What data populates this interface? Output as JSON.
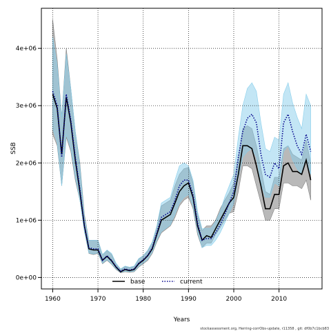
{
  "chart_data": {
    "type": "line",
    "xlabel": "Years",
    "ylabel": "SSB",
    "xlim": [
      1957.5,
      2019.5
    ],
    "ylim": [
      -200000,
      4700000
    ],
    "x_ticks": [
      1960,
      1970,
      1980,
      1990,
      2000,
      2010
    ],
    "x_tick_labels": [
      "1960",
      "1970",
      "1980",
      "1990",
      "2000",
      "2010"
    ],
    "y_ticks": [
      0,
      1000000,
      2000000,
      3000000,
      4000000
    ],
    "y_tick_labels": [
      "0e+00",
      "1e+06",
      "2e+06",
      "3e+06",
      "4e+06"
    ],
    "grid": true,
    "legend_position": "bottom",
    "colors": {
      "base_line": "#000000",
      "base_band": "#808080",
      "current_line": "#00008b",
      "current_band": "#87ceeb",
      "grid": "#000000"
    },
    "series": [
      {
        "name": "base",
        "style": "solid",
        "years": [
          1960,
          1961,
          1962,
          1963,
          1964,
          1965,
          1966,
          1967,
          1968,
          1969,
          1970,
          1971,
          1972,
          1973,
          1974,
          1975,
          1976,
          1977,
          1978,
          1979,
          1980,
          1981,
          1982,
          1983,
          1984,
          1985,
          1986,
          1987,
          1988,
          1989,
          1990,
          1991,
          1992,
          1993,
          1994,
          1995,
          1996,
          1997,
          1998,
          1999,
          2000,
          2001,
          2002,
          2003,
          2004,
          2005,
          2006,
          2007,
          2008,
          2009,
          2010,
          2011,
          2012,
          2013,
          2014,
          2015,
          2016,
          2017
        ],
        "values": [
          3200000,
          2950000,
          2150000,
          3150000,
          2700000,
          2050000,
          1500000,
          900000,
          500000,
          480000,
          480000,
          300000,
          370000,
          290000,
          180000,
          100000,
          140000,
          120000,
          140000,
          240000,
          300000,
          380000,
          500000,
          750000,
          1000000,
          1050000,
          1100000,
          1300000,
          1500000,
          1600000,
          1650000,
          1400000,
          900000,
          650000,
          730000,
          700000,
          850000,
          1000000,
          1150000,
          1300000,
          1400000,
          1800000,
          2300000,
          2300000,
          2250000,
          1950000,
          1600000,
          1200000,
          1200000,
          1450000,
          1450000,
          1950000,
          2000000,
          1850000,
          1850000,
          1800000,
          2050000,
          1700000
        ],
        "lower": [
          2500000,
          2300000,
          1600000,
          2450000,
          2200000,
          1700000,
          1350000,
          800000,
          420000,
          400000,
          420000,
          240000,
          300000,
          230000,
          140000,
          80000,
          100000,
          90000,
          100000,
          180000,
          240000,
          300000,
          420000,
          620000,
          780000,
          840000,
          900000,
          1050000,
          1250000,
          1350000,
          1400000,
          1200000,
          750000,
          520000,
          600000,
          600000,
          750000,
          870000,
          1000000,
          1120000,
          1150000,
          1500000,
          1950000,
          1950000,
          1900000,
          1600000,
          1300000,
          1000000,
          1000000,
          1200000,
          1200000,
          1650000,
          1650000,
          1600000,
          1600000,
          1550000,
          1700000,
          1350000
        ],
        "upper": [
          4500000,
          3800000,
          2800000,
          4000000,
          3300000,
          2550000,
          2000000,
          1100000,
          650000,
          650000,
          650000,
          400000,
          470000,
          400000,
          230000,
          140000,
          190000,
          170000,
          190000,
          320000,
          380000,
          460000,
          620000,
          880000,
          1250000,
          1300000,
          1350000,
          1600000,
          1800000,
          1900000,
          1920000,
          1650000,
          1100000,
          820000,
          900000,
          900000,
          1000000,
          1200000,
          1350000,
          1480000,
          1650000,
          2100000,
          2600000,
          2650000,
          2600000,
          2300000,
          1900000,
          1500000,
          1450000,
          1750000,
          1750000,
          2250000,
          2300000,
          2150000,
          2100000,
          2050000,
          2400000,
          2000000
        ]
      },
      {
        "name": "current",
        "style": "dotted",
        "years": [
          1960,
          1961,
          1962,
          1963,
          1964,
          1965,
          1966,
          1967,
          1968,
          1969,
          1970,
          1971,
          1972,
          1973,
          1974,
          1975,
          1976,
          1977,
          1978,
          1979,
          1980,
          1981,
          1982,
          1983,
          1984,
          1985,
          1986,
          1987,
          1988,
          1989,
          1990,
          1991,
          1992,
          1993,
          1994,
          1995,
          1996,
          1997,
          1998,
          1999,
          2000,
          2001,
          2002,
          2003,
          2004,
          2005,
          2006,
          2007,
          2008,
          2009,
          2010,
          2011,
          2012,
          2013,
          2014,
          2015,
          2016,
          2017
        ],
        "values": [
          3250000,
          3000000,
          2100000,
          3200000,
          2750000,
          2100000,
          1550000,
          900000,
          520000,
          500000,
          500000,
          300000,
          380000,
          300000,
          190000,
          110000,
          150000,
          130000,
          150000,
          250000,
          310000,
          390000,
          520000,
          780000,
          1050000,
          1100000,
          1150000,
          1350000,
          1600000,
          1700000,
          1700000,
          1450000,
          950000,
          650000,
          680000,
          680000,
          780000,
          920000,
          1100000,
          1300000,
          1500000,
          2100000,
          2550000,
          2780000,
          2850000,
          2700000,
          2150000,
          1800000,
          1750000,
          2000000,
          1900000,
          2700000,
          2850000,
          2550000,
          2300000,
          2150000,
          2500000,
          2200000
        ],
        "lower": [
          2600000,
          2350000,
          1600000,
          2500000,
          2250000,
          1750000,
          1350000,
          800000,
          430000,
          410000,
          430000,
          250000,
          310000,
          240000,
          150000,
          90000,
          110000,
          100000,
          110000,
          200000,
          250000,
          320000,
          440000,
          650000,
          800000,
          860000,
          920000,
          1100000,
          1300000,
          1400000,
          1450000,
          1250000,
          800000,
          520000,
          560000,
          560000,
          650000,
          780000,
          950000,
          1120000,
          1300000,
          1750000,
          2100000,
          2200000,
          2250000,
          2100000,
          1650000,
          1400000,
          1400000,
          1650000,
          1600000,
          2200000,
          2300000,
          2050000,
          1900000,
          1800000,
          2050000,
          1800000
        ],
        "upper": [
          4200000,
          3700000,
          2800000,
          3900000,
          3300000,
          2550000,
          1950000,
          1050000,
          650000,
          650000,
          650000,
          400000,
          480000,
          420000,
          250000,
          150000,
          200000,
          180000,
          200000,
          330000,
          380000,
          480000,
          620000,
          900000,
          1300000,
          1350000,
          1400000,
          1700000,
          1950000,
          2000000,
          1950000,
          1700000,
          1150000,
          850000,
          860000,
          860000,
          980000,
          1150000,
          1400000,
          1600000,
          1800000,
          2450000,
          3000000,
          3300000,
          3400000,
          3250000,
          2700000,
          2250000,
          2200000,
          2450000,
          2400000,
          3200000,
          3400000,
          3050000,
          2800000,
          2600000,
          3200000,
          3000000
        ]
      }
    ]
  },
  "footer": {
    "text": "stockassessment.org, Herring-corrObs-update, r11358 , git: df0b7c1bcb83"
  }
}
